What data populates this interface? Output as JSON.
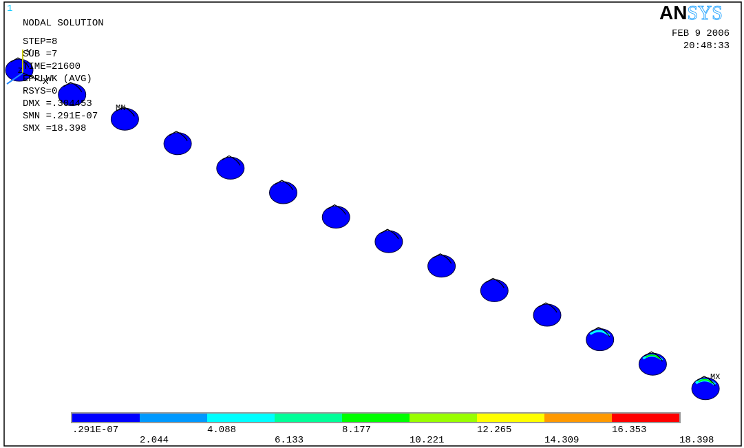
{
  "window_number": "1",
  "header": {
    "title": "NODAL SOLUTION",
    "lines": [
      "STEP=8",
      "SUB =7",
      "TIME=21600",
      "EPPLWK    (AVG)",
      "RSYS=0",
      "DMX =.304453",
      "SMN =.291E-07",
      "SMX =18.398"
    ]
  },
  "logo": {
    "bold": "AN",
    "light": "SYS"
  },
  "date": "FEB  9 2006",
  "time": "20:48:33",
  "markers": {
    "min": "MN",
    "max": "MX"
  },
  "triad": {
    "x": "X",
    "y": "Y",
    "z": "Z"
  },
  "colorbar": {
    "colors": [
      "#0000ff",
      "#0099ff",
      "#00ffff",
      "#00ff99",
      "#00ff00",
      "#99ff00",
      "#ffff00",
      "#ff9900",
      "#ff0000"
    ],
    "labels": [
      ".291E-07",
      "2.044",
      "4.088",
      "6.133",
      "8.177",
      "10.221",
      "12.265",
      "14.309",
      "16.353",
      "18.398"
    ]
  }
}
